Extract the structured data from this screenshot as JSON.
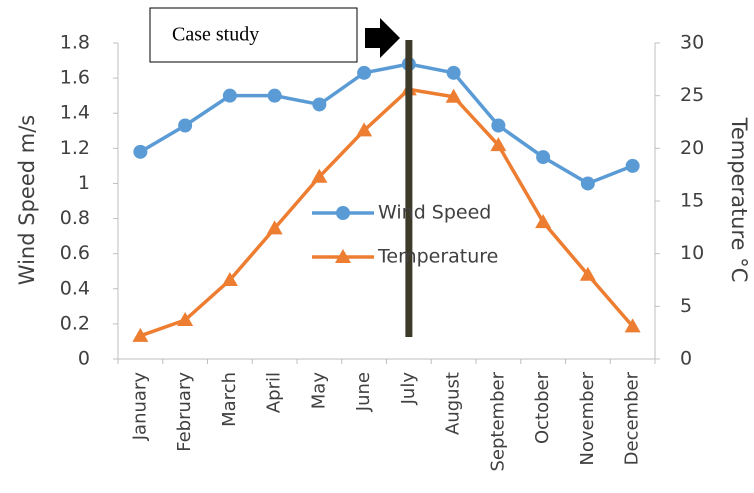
{
  "chart_data": {
    "type": "line",
    "annotation": "Case study",
    "y_label": "Wind Speed m/s",
    "y2_label": "Temperature °C",
    "categories": [
      "January",
      "February",
      "March",
      "April",
      "May",
      "June",
      "July",
      "August",
      "September",
      "October",
      "November",
      "December"
    ],
    "series": [
      {
        "name": "Wind Speed",
        "color": "#5b9bd5",
        "marker": "circle",
        "values": [
          1.18,
          1.33,
          1.5,
          1.5,
          1.45,
          1.63,
          1.68,
          1.63,
          1.33,
          1.15,
          1.0,
          1.1
        ]
      },
      {
        "name": "Temperature",
        "color": "#ed7d31",
        "marker": "triangle",
        "axis": "y2",
        "values": [
          2.2,
          3.7,
          7.5,
          12.4,
          17.3,
          21.7,
          25.6,
          24.9,
          20.3,
          13,
          8,
          3.1
        ]
      }
    ],
    "ylim": [
      0,
      1.8
    ],
    "yticks": [
      0,
      0.2,
      0.4,
      0.6,
      0.8,
      1,
      1.2,
      1.4,
      1.6,
      1.8
    ],
    "y2lim": [
      0,
      30
    ],
    "y2ticks": [
      0,
      5,
      10,
      15,
      20,
      25,
      30
    ],
    "grid": false,
    "legend": "center"
  }
}
